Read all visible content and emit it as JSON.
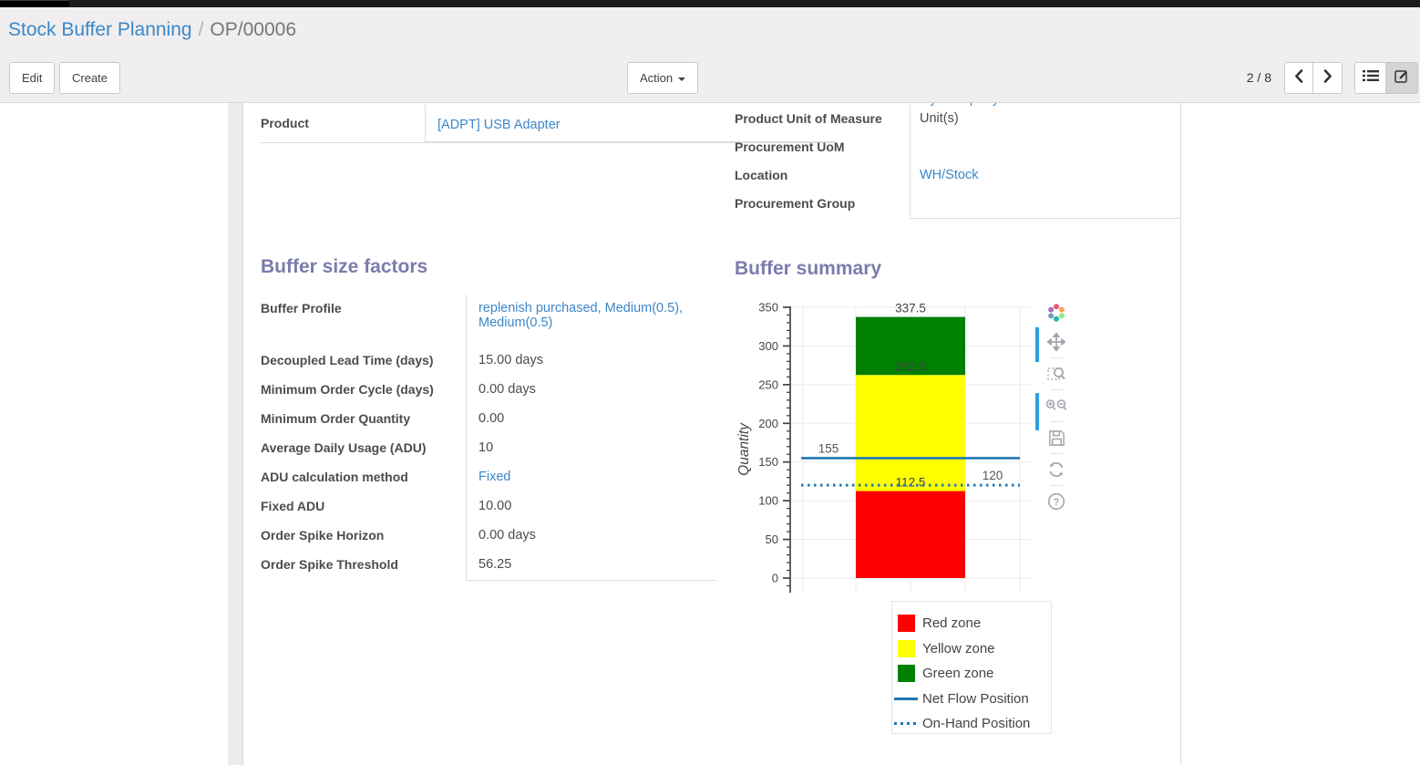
{
  "control_panel": {
    "breadcrumb": {
      "parent": "Stock Buffer Planning",
      "separator": "/",
      "current": "OP/00006"
    },
    "buttons": {
      "edit": "Edit",
      "create": "Create",
      "action": "Action"
    },
    "pager": {
      "text": "2 / 8"
    }
  },
  "form": {
    "clipped_row_value": "My Company",
    "left_group": {
      "rows": [
        {
          "label": "Product",
          "value": "[ADPT] USB Adapter",
          "link": true
        }
      ]
    },
    "right_group": {
      "rows": [
        {
          "label": "Product Unit of Measure",
          "value": "Unit(s)",
          "link": false
        },
        {
          "label": "Procurement UoM",
          "value": "",
          "link": false
        },
        {
          "label": "Location",
          "value": "WH/Stock",
          "link": true
        },
        {
          "label": "Procurement Group",
          "value": "",
          "link": false
        }
      ]
    },
    "factors": {
      "heading": "Buffer size factors",
      "rows": [
        {
          "label": "Buffer Profile",
          "value": "replenish purchased, Medium(0.5), Medium(0.5)",
          "link": true,
          "tall": true
        },
        {
          "label": "Decoupled Lead Time (days)",
          "value": "15.00",
          "suffix": "days"
        },
        {
          "label": "Minimum Order Cycle (days)",
          "value": "0.00",
          "suffix": "days"
        },
        {
          "label": "Minimum Order Quantity",
          "value": "0.00"
        },
        {
          "label": "Average Daily Usage (ADU)",
          "value": "10"
        },
        {
          "label": "ADU calculation method",
          "value": "Fixed",
          "link": true
        },
        {
          "label": "Fixed ADU",
          "value": "10.00"
        },
        {
          "label": "Order Spike Horizon",
          "value": "0.00",
          "suffix": "days"
        },
        {
          "label": "Order Spike Threshold",
          "value": "56.25"
        }
      ]
    },
    "summary_heading": "Buffer summary"
  },
  "chart_data": {
    "type": "bar",
    "stacked": true,
    "title": "Buffer summary",
    "xlabel": "",
    "ylabel": "Quantity",
    "ylim": [
      0,
      350
    ],
    "ytick_step": 50,
    "minor_tick_step": 10,
    "grid": true,
    "categories": [
      ""
    ],
    "series": [
      {
        "name": "Red zone",
        "color": "#ff0000",
        "from": 0,
        "to": 112.5,
        "label": "112.5"
      },
      {
        "name": "Yellow zone",
        "color": "#ffff00",
        "from": 112.5,
        "to": 262.5,
        "label": "262.5"
      },
      {
        "name": "Green zone",
        "color": "#008000",
        "from": 262.5,
        "to": 337.5,
        "label": "337.5"
      }
    ],
    "lines": [
      {
        "name": "Net Flow Position",
        "value": 155,
        "style": "solid",
        "color": "#1f77b4",
        "label": "155",
        "label_side": "left"
      },
      {
        "name": "On-Hand Position",
        "value": 120,
        "style": "dotted",
        "color": "#1f77b4",
        "label": "120",
        "label_side": "right"
      }
    ],
    "legend_position": "bottom-right"
  }
}
